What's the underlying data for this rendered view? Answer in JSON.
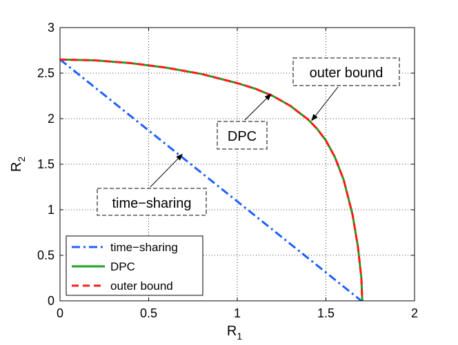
{
  "chart_data": {
    "type": "line",
    "title": "",
    "xlabel": "R",
    "xlabel_sub": "1",
    "ylabel": "R",
    "ylabel_sub": "2",
    "xlim": [
      0,
      2
    ],
    "ylim": [
      0,
      3
    ],
    "xticks": [
      0,
      0.5,
      1,
      1.5,
      2
    ],
    "xtick_labels": [
      "0",
      "0.5",
      "1",
      "1.5",
      "2"
    ],
    "yticks": [
      0,
      0.5,
      1,
      1.5,
      2,
      2.5,
      3
    ],
    "ytick_labels": [
      "0",
      "0.5",
      "1",
      "1.5",
      "2",
      "2.5",
      "3"
    ],
    "grid": true,
    "legend_position": "bottom-left",
    "series": [
      {
        "name": "time−sharing",
        "color": "#1f5fff",
        "style": "dashdot",
        "x": [
          0,
          1.7
        ],
        "y": [
          2.65,
          0
        ]
      },
      {
        "name": "DPC",
        "color": "#1ea01e",
        "style": "solid",
        "x": [
          0,
          0.2,
          0.4,
          0.6,
          0.8,
          1.0,
          1.1,
          1.2,
          1.3,
          1.4,
          1.45,
          1.5,
          1.55,
          1.6,
          1.65,
          1.68,
          1.7,
          1.705
        ],
        "y": [
          2.65,
          2.64,
          2.61,
          2.56,
          2.49,
          2.39,
          2.33,
          2.25,
          2.14,
          1.99,
          1.89,
          1.76,
          1.58,
          1.33,
          0.95,
          0.6,
          0.25,
          0
        ]
      },
      {
        "name": "outer bound",
        "color": "#ff1a1a",
        "style": "dashed",
        "x": [
          0,
          0.2,
          0.4,
          0.6,
          0.8,
          1.0,
          1.1,
          1.2,
          1.3,
          1.4,
          1.45,
          1.5,
          1.55,
          1.6,
          1.65,
          1.68,
          1.7,
          1.705
        ],
        "y": [
          2.65,
          2.64,
          2.61,
          2.56,
          2.49,
          2.39,
          2.33,
          2.25,
          2.14,
          1.99,
          1.89,
          1.76,
          1.58,
          1.33,
          0.95,
          0.6,
          0.25,
          0
        ]
      }
    ],
    "annotations": [
      {
        "text": "outer bound",
        "arrow_to": [
          1.42,
          1.98
        ]
      },
      {
        "text": "DPC",
        "arrow_to": [
          1.19,
          2.27
        ]
      },
      {
        "text": "time−sharing",
        "arrow_to": [
          0.69,
          1.61
        ]
      }
    ]
  }
}
